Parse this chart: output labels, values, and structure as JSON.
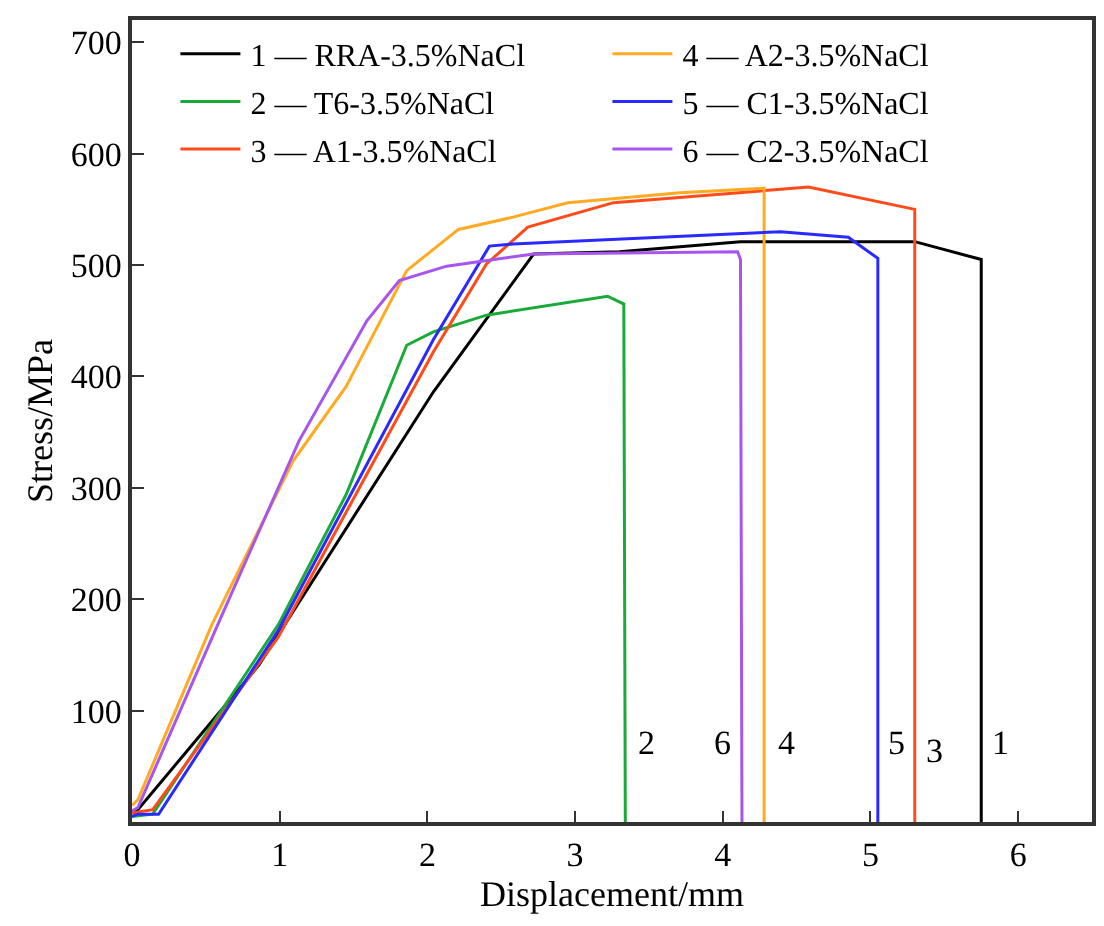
{
  "chart_data": {
    "type": "line",
    "xlabel": "Displacement/mm",
    "ylabel": "Stress/MPa",
    "xlim": [
      0,
      6.5
    ],
    "ylim": [
      0,
      720
    ],
    "xticks": [
      0,
      1,
      2,
      3,
      4,
      5,
      6
    ],
    "yticks": [
      100,
      200,
      300,
      400,
      500,
      600,
      700
    ],
    "legend": "top",
    "marker": "none",
    "line_style": "solid",
    "series": [
      {
        "name": "1 — RRA-3.5%NaCl",
        "color": "#000000",
        "x": [
          0,
          0.04,
          0.86,
          2.04,
          2.72,
          3.3,
          4.12,
          5.3,
          5.75,
          5.75
        ],
        "values": [
          10,
          11,
          141,
          386,
          510,
          512,
          521,
          521,
          505,
          0
        ]
      },
      {
        "name": "2 — T6-3.5%NaCl",
        "color": "#1aaa3a",
        "x": [
          0,
          0.14,
          0.99,
          1.45,
          1.86,
          2.04,
          2.4,
          3.22,
          3.33,
          3.34
        ],
        "values": [
          5,
          7,
          177,
          294,
          428,
          440,
          455,
          472,
          465,
          0
        ]
      },
      {
        "name": "3 — A1-3.5%NaCl",
        "color": "#ff4a1a",
        "x": [
          0,
          0.14,
          0.99,
          2.04,
          2.4,
          2.68,
          3.26,
          4.58,
          5.3,
          5.3
        ],
        "values": [
          8,
          11,
          166,
          422,
          501,
          534,
          556,
          570,
          550,
          0
        ]
      },
      {
        "name": "4 — A2-3.5%NaCl",
        "color": "#ffaa22",
        "x": [
          0,
          0.04,
          0.54,
          1.09,
          1.45,
          1.86,
          2.21,
          2.58,
          2.95,
          3.71,
          4.28,
          4.28
        ],
        "values": [
          15,
          20,
          177,
          324,
          391,
          495,
          532,
          543,
          556,
          565,
          569,
          0
        ]
      },
      {
        "name": "5 — C1-3.5%NaCl",
        "color": "#2a2aff",
        "x": [
          0,
          0.04,
          0.18,
          0.99,
          2.04,
          2.42,
          2.58,
          4.39,
          4.85,
          5.05,
          5.05
        ],
        "values": [
          5,
          7,
          7,
          172,
          433,
          517,
          519,
          530,
          525,
          506,
          0
        ]
      },
      {
        "name": "6 — C2-3.5%NaCl",
        "color": "#a855f0",
        "x": [
          0,
          0.04,
          0.58,
          1.13,
          1.59,
          1.81,
          2.13,
          2.72,
          4.1,
          4.12,
          4.13
        ],
        "values": [
          10,
          13,
          177,
          342,
          450,
          486,
          499,
          510,
          512,
          505,
          0
        ]
      }
    ],
    "annotations": [
      "2",
      "6",
      "4",
      "5",
      "3",
      "1"
    ]
  }
}
